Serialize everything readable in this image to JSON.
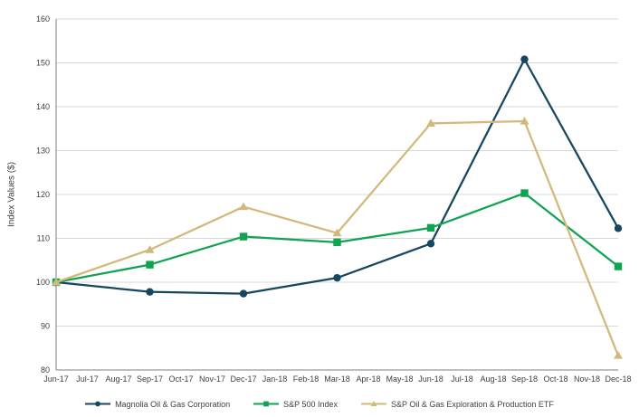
{
  "chart_data": {
    "type": "line",
    "title": "",
    "ylabel": "Index Values ($)",
    "xlabel": "",
    "ylim": [
      80,
      160
    ],
    "yticks": [
      80,
      90,
      100,
      110,
      120,
      130,
      140,
      150,
      160
    ],
    "x_labels": [
      "Jun-17",
      "Jul-17",
      "Aug-17",
      "Sep-17",
      "Oct-17",
      "Nov-17",
      "Dec-17",
      "Jan-18",
      "Feb-18",
      "Mar-18",
      "Apr-18",
      "May-18",
      "Jun-18",
      "Jul-18",
      "Aug-18",
      "Sep-18",
      "Oct-18",
      "Nov-18",
      "Dec-18"
    ],
    "grid": true,
    "legend_position": "bottom",
    "series": [
      {
        "name": "Magnolia Oil & Gas Corporation",
        "color": "#17465f",
        "marker": "circle",
        "x_indices": [
          0,
          3,
          6,
          9,
          12,
          15,
          18
        ],
        "values": [
          100.0,
          97.8,
          97.4,
          101.0,
          108.8,
          150.8,
          112.3
        ]
      },
      {
        "name": "S&P 500 Index",
        "color": "#10a351",
        "marker": "square",
        "x_indices": [
          0,
          3,
          6,
          9,
          12,
          15,
          18
        ],
        "values": [
          100.0,
          104.0,
          110.4,
          109.1,
          112.4,
          120.3,
          103.6
        ]
      },
      {
        "name": "S&P Oil & Gas Exploration & Production ETF",
        "color": "#d2b87a",
        "marker": "triangle",
        "x_indices": [
          0,
          3,
          6,
          9,
          12,
          15,
          18
        ],
        "values": [
          100.0,
          107.4,
          117.2,
          111.2,
          136.2,
          136.7,
          83.3
        ]
      }
    ],
    "colors": {
      "gridline": "#d9d9d9",
      "axis": "#7f7f7f",
      "text": "#404040"
    }
  }
}
